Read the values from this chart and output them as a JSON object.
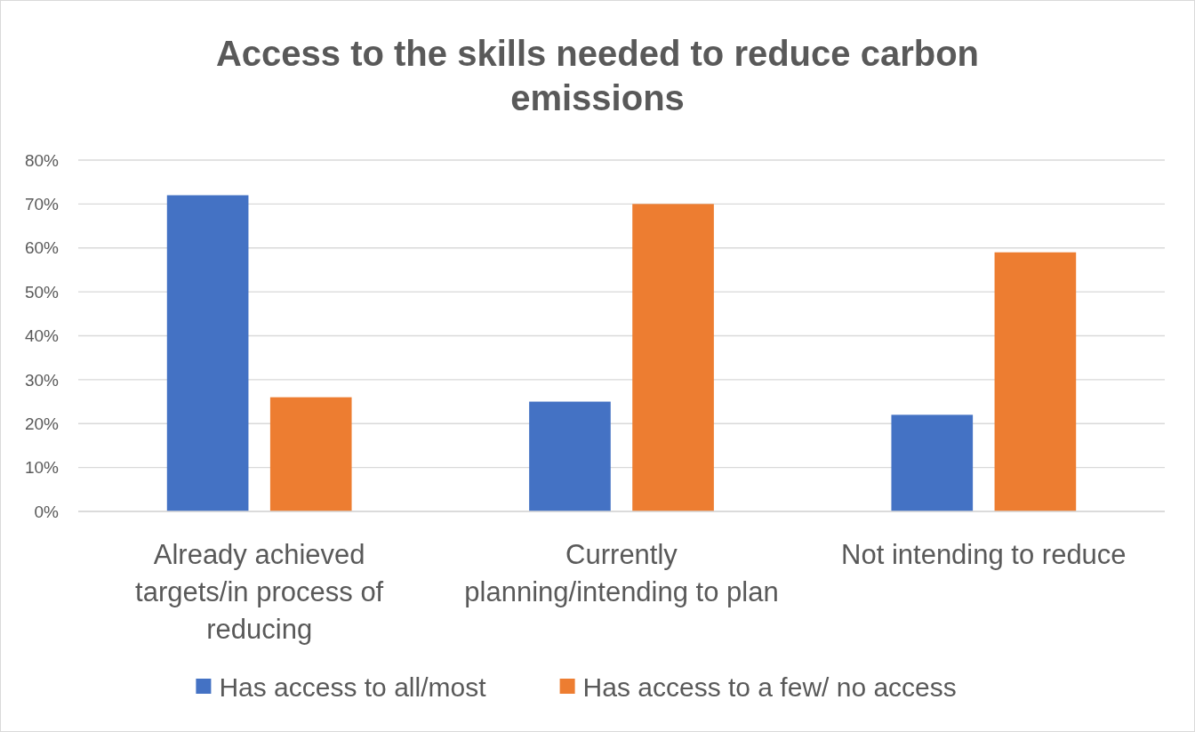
{
  "chart_data": {
    "type": "bar",
    "title": "Access to the skills needed to reduce carbon emissions",
    "categories": [
      "Already achieved targets/in process of reducing",
      "Currently planning/intending to plan",
      "Not intending to reduce"
    ],
    "series": [
      {
        "name": "Has access to all/most",
        "color": "#4472c4",
        "values": [
          72,
          25,
          22
        ]
      },
      {
        "name": "Has access to a few/ no access",
        "color": "#ed7d31",
        "values": [
          26,
          70,
          59
        ]
      }
    ],
    "ylim": [
      0,
      80
    ],
    "yticks": [
      {
        "value": 0,
        "label": "0%"
      },
      {
        "value": 10,
        "label": "10%"
      },
      {
        "value": 20,
        "label": "20%"
      },
      {
        "value": 30,
        "label": "30%"
      },
      {
        "value": 40,
        "label": "40%"
      },
      {
        "value": 50,
        "label": "50%"
      },
      {
        "value": 60,
        "label": "60%"
      },
      {
        "value": 70,
        "label": "70%"
      },
      {
        "value": 80,
        "label": "80%"
      }
    ],
    "grid": "y",
    "legend": "bottom"
  }
}
